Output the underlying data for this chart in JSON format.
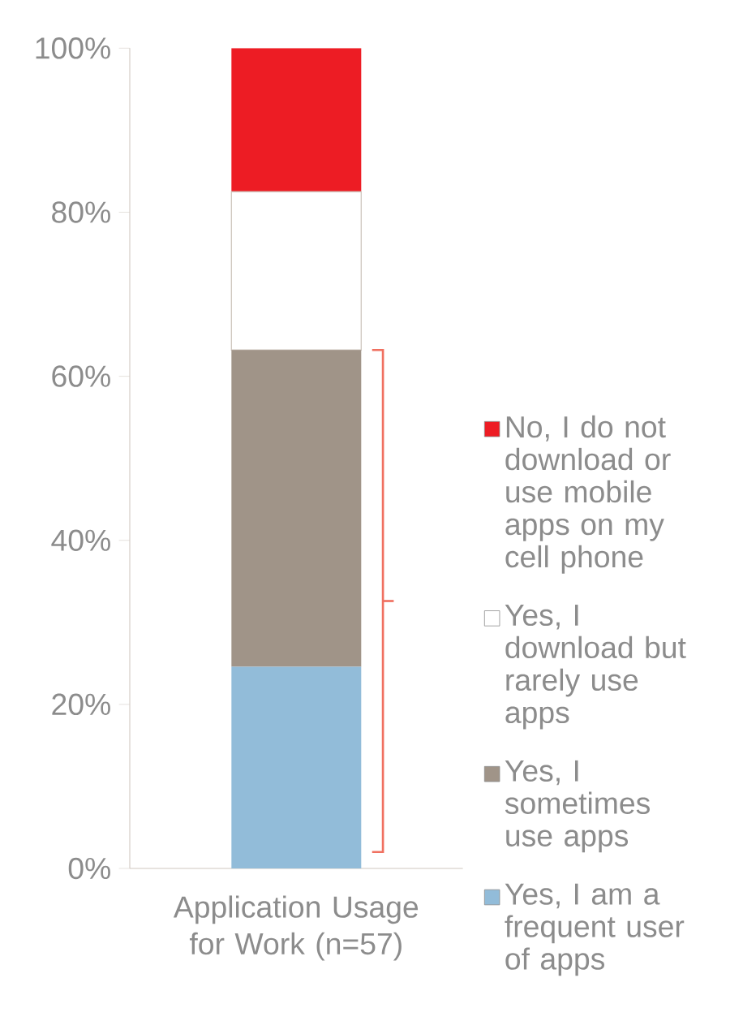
{
  "chart_data": {
    "type": "bar",
    "stacked": true,
    "categories": [
      "Application Usage for Work (n=57)"
    ],
    "series": [
      {
        "name": "Yes, I am a frequent user of apps",
        "color": "#92bcd9",
        "values": [
          24.6
        ]
      },
      {
        "name": "Yes, I sometimes use apps",
        "color": "#a09488",
        "values": [
          38.6
        ]
      },
      {
        "name": "Yes, I download but rarely use apps",
        "color": "#ffffff",
        "values": [
          19.3
        ]
      },
      {
        "name": "No, I do not download or use mobile apps on my cell phone",
        "color": "#ed1c24",
        "values": [
          17.5
        ]
      }
    ],
    "ylim": [
      0,
      100
    ],
    "yticks": [
      {
        "value": 0,
        "label": "0%"
      },
      {
        "value": 20,
        "label": "20%"
      },
      {
        "value": 40,
        "label": "40%"
      },
      {
        "value": 60,
        "label": "60%"
      },
      {
        "value": 80,
        "label": "80%"
      },
      {
        "value": 100,
        "label": "100%"
      }
    ],
    "grid": false,
    "legend": "right"
  }
}
